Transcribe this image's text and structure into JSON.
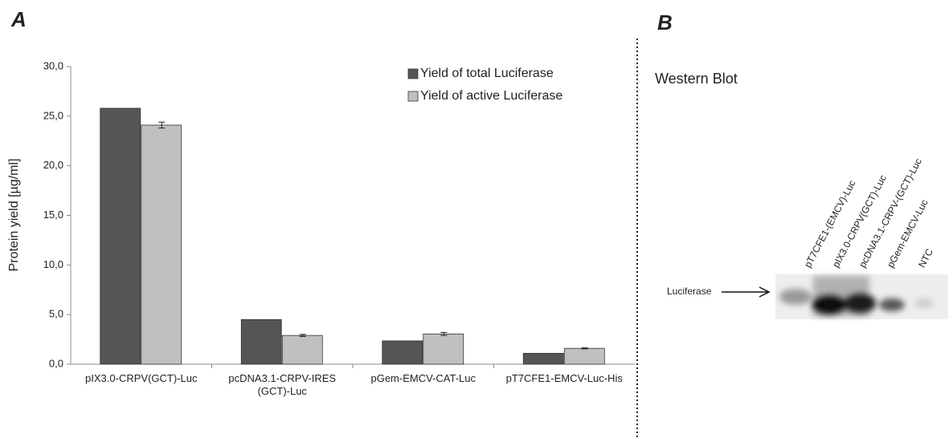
{
  "chart_data": {
    "type": "bar",
    "y_label": "Protein yield [µg/ml]",
    "categories": [
      "pIX3.0-CRPV(GCT)-Luc",
      "pcDNA3.1-CRPV-IRES (GCT)-Luc",
      "pGem-EMCV-CAT-Luc",
      "pT7CFE1-EMCV-Luc-His"
    ],
    "series": [
      {
        "name": "Yield of total Luciferase",
        "color": "#555555",
        "values": [
          25.8,
          4.5,
          2.35,
          1.1
        ]
      },
      {
        "name": "Yield of active Luciferase",
        "color": "#c0c0c0",
        "values": [
          24.1,
          2.9,
          3.05,
          1.6
        ],
        "errors": [
          0.3,
          0.1,
          0.15,
          0.05
        ]
      }
    ],
    "ylim": [
      0,
      30
    ],
    "yticks": [
      {
        "value": 0,
        "label": "0,0"
      },
      {
        "value": 5,
        "label": "5,0"
      },
      {
        "value": 10,
        "label": "10,0"
      },
      {
        "value": 15,
        "label": "15,0"
      },
      {
        "value": 20,
        "label": "20,0"
      },
      {
        "value": 25,
        "label": "25,0"
      },
      {
        "value": 30,
        "label": "30,0"
      }
    ],
    "legend": "upper right"
  },
  "panels": [
    "A",
    "B"
  ],
  "blot": {
    "title": "Western Blot",
    "band_label": "Luciferase",
    "lanes": [
      "pT7CFE1-(EMCV)-Luc",
      "pIX3.0-CRPV(GCT)-Luc",
      "pcDNA3.1-CRPV-(GCT)-Luc",
      "pGem-EMCV-Luc",
      "NTC"
    ]
  }
}
